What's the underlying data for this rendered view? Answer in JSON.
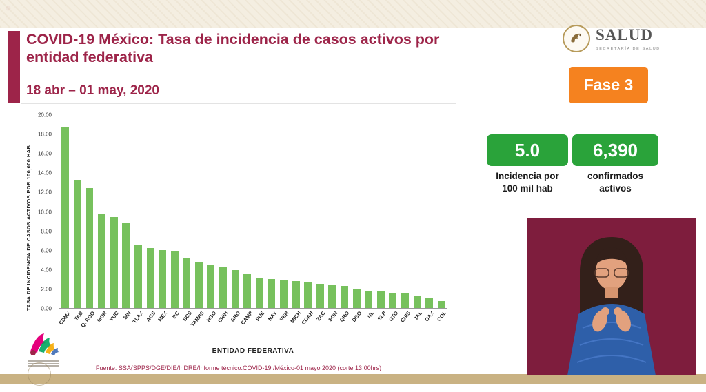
{
  "header": {
    "title_line1": "COVID-19 México: Tasa de incidencia de casos activos por",
    "title_line2": "entidad federativa",
    "date": "18 abr – 01 may, 2020"
  },
  "logo": {
    "name": "SALUD",
    "subtitle": "SECRETARÍA DE SALUD"
  },
  "phase": {
    "label": "Fase 3"
  },
  "stats": [
    {
      "value": "5.0",
      "caption_line1": "Incidencia por",
      "caption_line2": "100 mil hab"
    },
    {
      "value": "6,390",
      "caption_line1": "confirmados",
      "caption_line2": "activos"
    }
  ],
  "chart_data": {
    "type": "bar",
    "title": "COVID-19 México: Tasa de incidencia de casos activos por entidad federativa",
    "categories": [
      "CDMX",
      "TAB",
      "Q. ROO",
      "MOR",
      "YUC",
      "SIN",
      "TLAX",
      "AGS",
      "MEX",
      "BC",
      "BCS",
      "TAMPS",
      "HGO",
      "CHIH",
      "GRO",
      "CAMP",
      "PUE",
      "NAY",
      "VER",
      "MICH",
      "COAH",
      "ZAC",
      "SON",
      "QRO",
      "DGO",
      "NL",
      "SLP",
      "GTO",
      "CHIS",
      "JAL",
      "OAX",
      "COL"
    ],
    "values": [
      18.7,
      13.2,
      12.4,
      9.8,
      9.4,
      8.8,
      6.6,
      6.2,
      6.0,
      5.9,
      5.2,
      4.8,
      4.5,
      4.2,
      3.9,
      3.6,
      3.1,
      3.0,
      2.9,
      2.8,
      2.7,
      2.5,
      2.4,
      2.3,
      1.9,
      1.8,
      1.7,
      1.6,
      1.5,
      1.3,
      1.1,
      0.7
    ],
    "xlabel": "ENTIDAD FEDERATIVA",
    "ylabel": "TASA DE INCIDENCIA DE CASOS ACTIVOS  POR 100,000 HAB",
    "ylim": [
      0,
      20
    ],
    "ytick_step": 2,
    "grid": false,
    "legend": "none"
  },
  "footer": {
    "source": "Fuente: SSA(SPPS/DGE/DIE/InDRE/Informe técnico.COVID-19 /México-01 mayo 2020 (corte 13:00hrs)"
  },
  "colors": {
    "maroon": "#9D2449",
    "orange": "#F5821F",
    "green": "#2AA33A",
    "bar_green": "#77C15D",
    "beige": "#C9B283",
    "interpreter_bg": "#7E1D3D"
  }
}
